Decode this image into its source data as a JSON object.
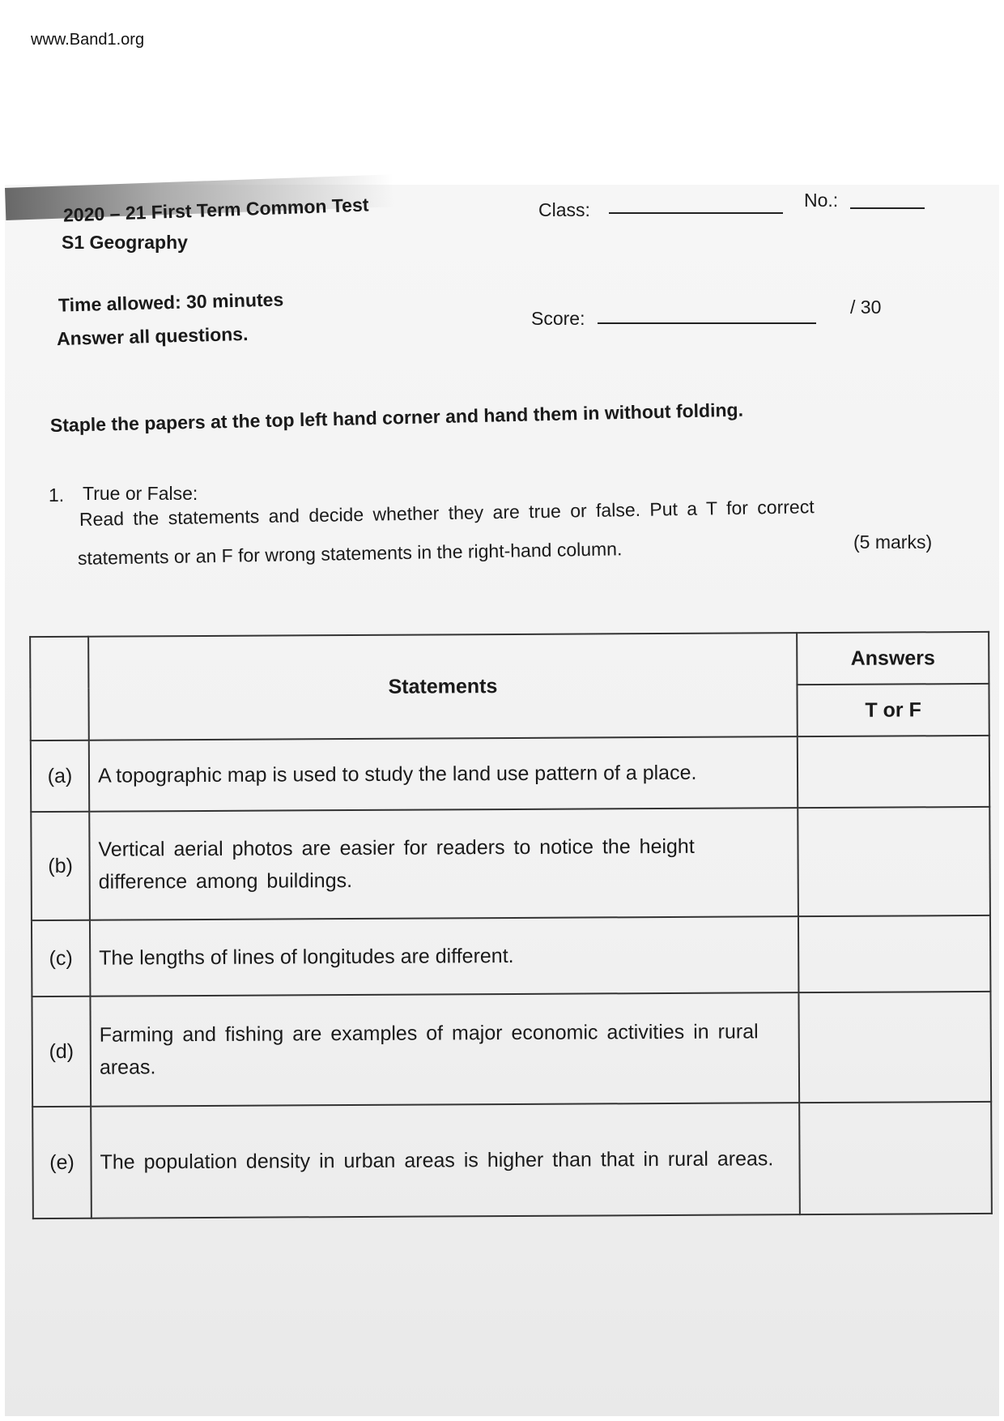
{
  "watermark": "www.Band1.org",
  "header": {
    "test_title": "2020 – 21 First Term Common Test",
    "subject": "S1 Geography",
    "class_label": "Class:",
    "no_label": "No.:",
    "time_allowed": "Time allowed: 30 minutes",
    "instructions": "Answer all questions.",
    "score_label": "Score:",
    "score_total": "/   30"
  },
  "staple_note": "Staple the papers at the top left hand corner and hand them in without folding.",
  "question": {
    "number": "1.",
    "title": "True or False:",
    "text_line1": "Read the statements and decide whether they are true or false. Put a T for correct",
    "text_line2": "statements or an  F  for wrong statements in the right-hand column.",
    "marks": "(5 marks)"
  },
  "table": {
    "statements_header": "Statements",
    "answers_header": "Answers",
    "answers_subheader": "T or F",
    "rows": [
      {
        "label": "(a)",
        "statement": "A topographic map is used to study the land use pattern of a place.",
        "answer": ""
      },
      {
        "label": "(b)",
        "statement": "Vertical aerial photos are easier for readers to notice the height difference among buildings.",
        "answer": ""
      },
      {
        "label": "(c)",
        "statement": "The lengths of lines of longitudes are different.",
        "answer": ""
      },
      {
        "label": "(d)",
        "statement": "Farming and fishing are examples of major economic activities in rural areas.",
        "answer": ""
      },
      {
        "label": "(e)",
        "statement": "The population density in urban areas is higher than that in rural areas.",
        "answer": ""
      }
    ]
  }
}
